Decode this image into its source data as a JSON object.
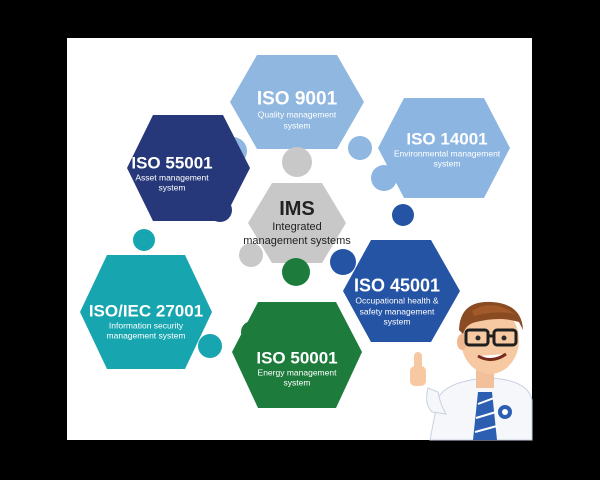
{
  "colors": {
    "frame": "#000000",
    "background": "#ffffff",
    "qms": "#8fb7df",
    "env": "#8cb6e1",
    "asset": "#27387a",
    "ims": "#c8c8c8",
    "ohs": "#2554a5",
    "isms": "#17a5b0",
    "enms": "#1d7c3c"
  },
  "pieces": {
    "ims": {
      "title": "IMS",
      "desc_lines": [
        "Integrated",
        "management systems"
      ]
    },
    "qms": {
      "title": "ISO 9001",
      "desc_lines": [
        "Quality management",
        "system"
      ]
    },
    "env": {
      "title": "ISO 14001",
      "desc_lines": [
        "Environmental management",
        "system"
      ]
    },
    "asset": {
      "title": "ISO 55001",
      "desc_lines": [
        "Asset management",
        "system"
      ]
    },
    "ohs": {
      "title": "ISO 45001",
      "desc_lines": [
        "Occupational health &",
        "safety management",
        "system"
      ]
    },
    "isms": {
      "title": "ISO/IEC 27001",
      "desc_lines": [
        "Information security",
        "management system"
      ]
    },
    "enms": {
      "title": "ISO 50001",
      "desc_lines": [
        "Energy management",
        "system"
      ]
    }
  },
  "mascot": {
    "icon": "thumbs-up-businessman-icon"
  }
}
